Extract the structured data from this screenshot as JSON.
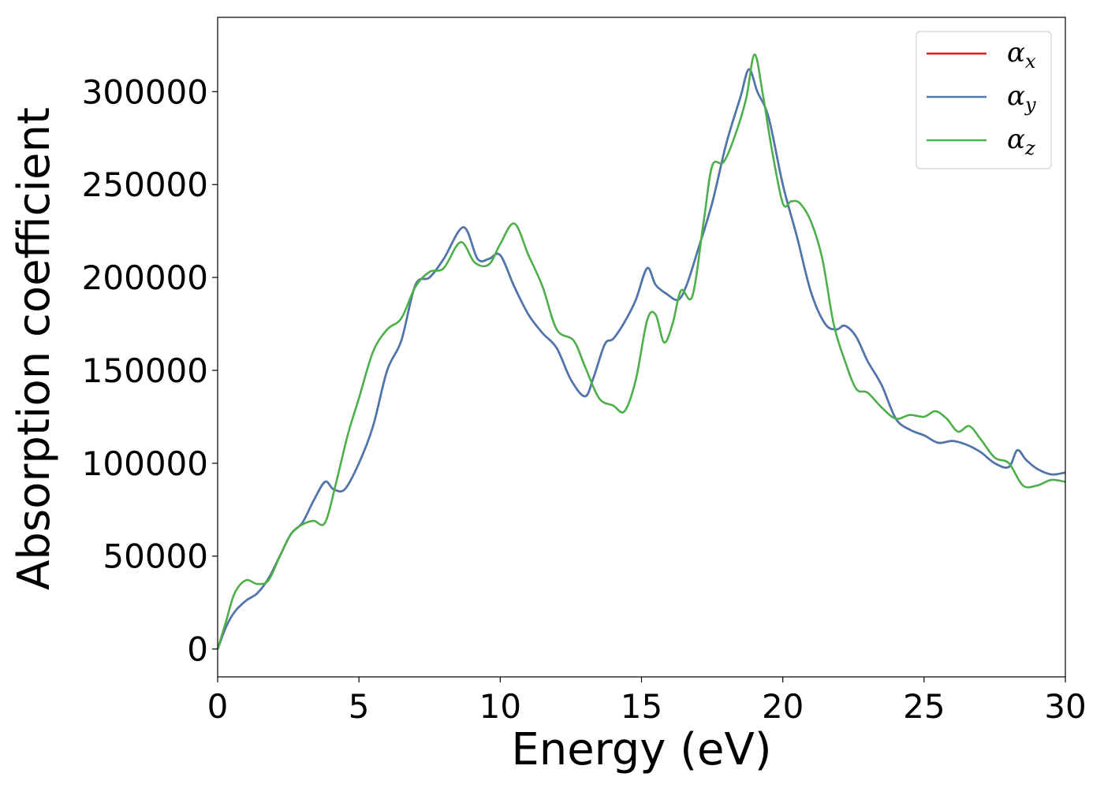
{
  "chart_data": {
    "type": "line",
    "title": "",
    "xlabel": "Energy (eV)",
    "ylabel": "Absorption coefficient",
    "xlim": [
      0,
      30
    ],
    "ylim": [
      -15000,
      340000
    ],
    "x_ticks": [
      "0",
      "5",
      "10",
      "15",
      "20",
      "25",
      "30"
    ],
    "y_ticks": [
      "0",
      "50000",
      "100000",
      "150000",
      "200000",
      "250000",
      "300000"
    ],
    "grid": false,
    "legend_position": "top-right",
    "series": [
      {
        "name": "α_x",
        "legend_base": "α",
        "legend_sub": "x",
        "color": "#e41a1c",
        "x": [
          0,
          0.3,
          0.6,
          1.0,
          1.4,
          1.8,
          2.2,
          2.6,
          3.0,
          3.4,
          3.8,
          4.1,
          4.5,
          5.0,
          5.5,
          6.0,
          6.5,
          7.0,
          7.5,
          8.0,
          8.7,
          9.2,
          9.6,
          10.0,
          10.5,
          11.0,
          11.5,
          12.0,
          12.5,
          13.0,
          13.3,
          13.7,
          14.0,
          14.4,
          14.8,
          15.2,
          15.5,
          15.9,
          16.3,
          16.6,
          17.0,
          17.5,
          18.0,
          18.5,
          18.8,
          19.1,
          19.5,
          20.0,
          20.5,
          21.0,
          21.5,
          21.9,
          22.2,
          22.6,
          23.0,
          23.5,
          24.0,
          24.5,
          25.0,
          25.5,
          26.0,
          26.5,
          27.0,
          27.5,
          28.0,
          28.3,
          28.6,
          29.0,
          29.5,
          30.0
        ],
        "y": [
          0,
          12000,
          20000,
          26000,
          30000,
          38000,
          50000,
          62000,
          68000,
          80000,
          90000,
          86000,
          86000,
          100000,
          120000,
          150000,
          166000,
          196000,
          200000,
          210000,
          227000,
          210000,
          210000,
          212000,
          195000,
          180000,
          170000,
          162000,
          145000,
          136000,
          146000,
          164000,
          167000,
          176000,
          188000,
          205000,
          196000,
          191000,
          188000,
          196000,
          215000,
          240000,
          272000,
          297000,
          312000,
          300000,
          286000,
          250000,
          222000,
          192000,
          175000,
          172000,
          174000,
          168000,
          155000,
          142000,
          124000,
          118000,
          115000,
          111000,
          112000,
          110000,
          106000,
          100000,
          98000,
          107000,
          102000,
          97000,
          94000,
          95000
        ]
      },
      {
        "name": "α_y",
        "legend_base": "α",
        "legend_sub": "y",
        "color": "#4a78b0",
        "x": [
          0,
          0.3,
          0.6,
          1.0,
          1.4,
          1.8,
          2.2,
          2.6,
          3.0,
          3.4,
          3.8,
          4.1,
          4.5,
          5.0,
          5.5,
          6.0,
          6.5,
          7.0,
          7.5,
          8.0,
          8.7,
          9.2,
          9.6,
          10.0,
          10.5,
          11.0,
          11.5,
          12.0,
          12.5,
          13.0,
          13.3,
          13.7,
          14.0,
          14.4,
          14.8,
          15.2,
          15.5,
          15.9,
          16.3,
          16.6,
          17.0,
          17.5,
          18.0,
          18.5,
          18.8,
          19.1,
          19.5,
          20.0,
          20.5,
          21.0,
          21.5,
          21.9,
          22.2,
          22.6,
          23.0,
          23.5,
          24.0,
          24.5,
          25.0,
          25.5,
          26.0,
          26.5,
          27.0,
          27.5,
          28.0,
          28.3,
          28.6,
          29.0,
          29.5,
          30.0
        ],
        "y": [
          0,
          12000,
          20000,
          26000,
          30000,
          38000,
          50000,
          62000,
          68000,
          80000,
          90000,
          86000,
          86000,
          100000,
          120000,
          150000,
          166000,
          196000,
          200000,
          210000,
          227000,
          210000,
          210000,
          212000,
          195000,
          180000,
          170000,
          162000,
          145000,
          136000,
          146000,
          164000,
          167000,
          176000,
          188000,
          205000,
          196000,
          191000,
          188000,
          196000,
          215000,
          240000,
          272000,
          297000,
          312000,
          300000,
          286000,
          250000,
          222000,
          192000,
          175000,
          172000,
          174000,
          168000,
          155000,
          142000,
          124000,
          118000,
          115000,
          111000,
          112000,
          110000,
          106000,
          100000,
          98000,
          107000,
          102000,
          97000,
          94000,
          95000
        ]
      },
      {
        "name": "α_z",
        "legend_base": "α",
        "legend_sub": "z",
        "color": "#4daf4a",
        "x": [
          0,
          0.3,
          0.6,
          1.0,
          1.4,
          1.8,
          2.2,
          2.6,
          3.0,
          3.4,
          3.8,
          4.2,
          4.6,
          5.0,
          5.5,
          6.0,
          6.5,
          7.0,
          7.5,
          8.0,
          8.6,
          9.1,
          9.6,
          10.0,
          10.5,
          11.0,
          11.5,
          12.0,
          12.6,
          13.0,
          13.5,
          14.0,
          14.4,
          14.8,
          15.2,
          15.5,
          15.8,
          16.1,
          16.4,
          16.8,
          17.2,
          17.5,
          17.9,
          18.3,
          18.7,
          19.0,
          19.3,
          19.6,
          20.0,
          20.3,
          20.6,
          21.0,
          21.4,
          21.8,
          22.2,
          22.6,
          23.0,
          23.5,
          24.0,
          24.5,
          25.0,
          25.4,
          25.8,
          26.2,
          26.6,
          27.0,
          27.5,
          28.0,
          28.5,
          29.0,
          29.5,
          30.0
        ],
        "y": [
          0,
          15000,
          30000,
          37000,
          35000,
          37000,
          50000,
          62000,
          67000,
          69000,
          68000,
          90000,
          115000,
          135000,
          160000,
          172000,
          178000,
          195000,
          203000,
          205000,
          219000,
          208000,
          207000,
          218000,
          229000,
          212000,
          195000,
          172000,
          166000,
          152000,
          135000,
          131000,
          128000,
          145000,
          177000,
          180000,
          165000,
          175000,
          193000,
          190000,
          230000,
          260000,
          262000,
          276000,
          296000,
          320000,
          298000,
          270000,
          240000,
          241000,
          240000,
          230000,
          210000,
          175000,
          155000,
          140000,
          138000,
          130000,
          124000,
          126000,
          125000,
          128000,
          124000,
          117000,
          120000,
          113000,
          103000,
          100000,
          88000,
          88000,
          91000,
          90000
        ]
      }
    ]
  }
}
